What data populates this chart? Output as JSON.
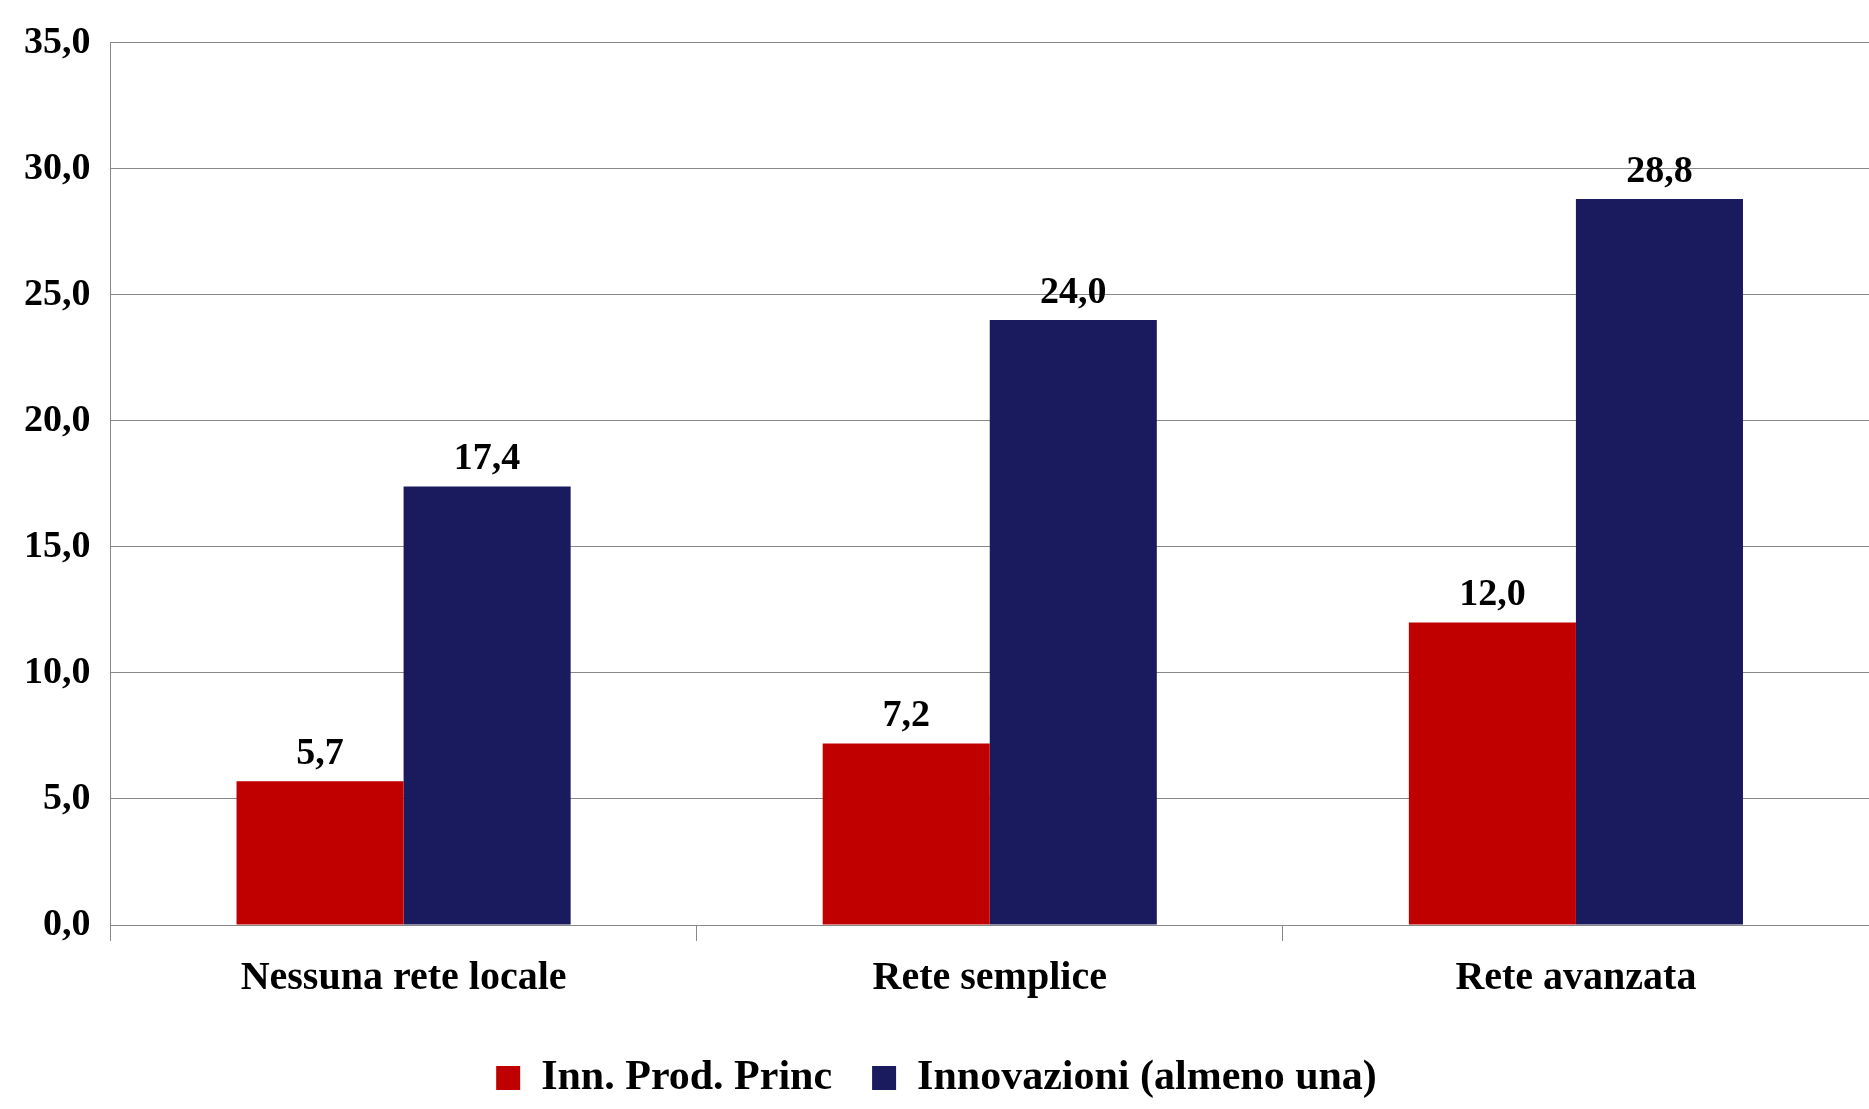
{
  "chart_data": {
    "type": "bar",
    "categories": [
      "Nessuna rete locale",
      "Rete semplice",
      "Rete avanzata"
    ],
    "series": [
      {
        "name": "Inn. Prod. Princ",
        "color": "#c00000",
        "values": [
          5.7,
          7.2,
          12.0
        ],
        "value_labels": [
          "5,7",
          "7,2",
          "12,0"
        ]
      },
      {
        "name": "Innovazioni (almeno una)",
        "color": "#1a1a5e",
        "values": [
          17.4,
          24.0,
          28.8
        ],
        "value_labels": [
          "17,4",
          "24,0",
          "28,8"
        ]
      }
    ],
    "ylim": [
      0,
      35
    ],
    "yticks": [
      {
        "value": 0,
        "label": "0,0"
      },
      {
        "value": 5,
        "label": "5,0"
      },
      {
        "value": 10,
        "label": "10,0"
      },
      {
        "value": 15,
        "label": "15,0"
      },
      {
        "value": 20,
        "label": "20,0"
      },
      {
        "value": 25,
        "label": "25,0"
      },
      {
        "value": 30,
        "label": "30,0"
      },
      {
        "value": 35,
        "label": "35,0"
      }
    ],
    "grid": "y",
    "legend": "bottom"
  }
}
